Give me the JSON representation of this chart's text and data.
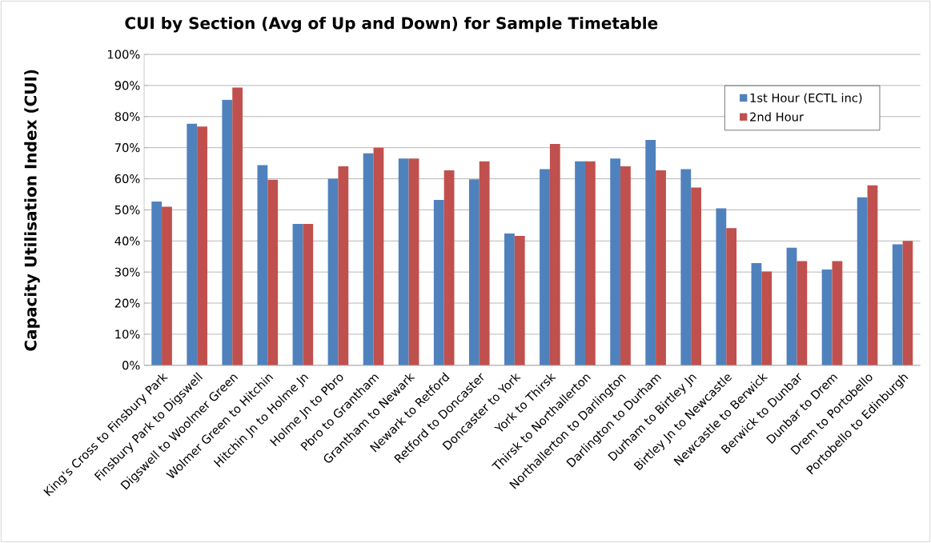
{
  "chart_data": {
    "type": "bar",
    "title": "CUI by Section (Avg of Up and Down) for Sample Timetable",
    "ylabel": "Capacity Utilisation Index (CUI)",
    "categories": [
      "King's Cross to Finsbury Park",
      "Finsbury Park to Digswell",
      "Digswell to Woolmer Green",
      "Wolmer Green to Hitchin",
      "Hitchin Jn to Holme Jn",
      "Holme Jn to Pbro",
      "Pbro to Grantham",
      "Grantham to Newark",
      "Newark to Retford",
      "Retford to Doncaster",
      "Doncaster to York",
      "York to Thirsk",
      "Thirsk to Northallerton",
      "Northallerton to Darlington",
      "Darlington to Durham",
      "Durham to Birtley Jn",
      "Birtley Jn to Newcastle",
      "Newcastle to Berwick",
      "Berwick to Dunbar",
      "Dunbar to Drem",
      "Drem to Portobello",
      "Portobello to Edinburgh"
    ],
    "series": [
      {
        "name": "1st Hour (ECTL inc)",
        "color": "#4f81bd",
        "values": [
          52.7,
          77.7,
          85.4,
          64.4,
          45.5,
          60,
          68.2,
          66.5,
          53.2,
          59.8,
          42.4,
          63.1,
          65.6,
          66.5,
          72.5,
          63.1,
          50.5,
          32.9,
          37.8,
          30.8,
          54,
          38.9
        ]
      },
      {
        "name": "2nd Hour",
        "color": "#c0504d",
        "values": [
          51,
          76.8,
          89.3,
          59.7,
          45.5,
          64,
          70,
          66.5,
          62.7,
          65.6,
          41.6,
          71.2,
          65.6,
          64,
          62.7,
          57.2,
          44.1,
          30.2,
          33.5,
          33.5,
          57.9,
          40
        ]
      }
    ],
    "ylim": [
      0,
      100
    ],
    "yticks": [
      {
        "value": 0,
        "label": "0%"
      },
      {
        "value": 10,
        "label": "10%"
      },
      {
        "value": 20,
        "label": "20%"
      },
      {
        "value": 30,
        "label": "30%"
      },
      {
        "value": 40,
        "label": "40%"
      },
      {
        "value": 50,
        "label": "50%"
      },
      {
        "value": 60,
        "label": "60%"
      },
      {
        "value": 70,
        "label": "70%"
      },
      {
        "value": 80,
        "label": "80%"
      },
      {
        "value": 90,
        "label": "90%"
      },
      {
        "value": 100,
        "label": "100%"
      }
    ],
    "grid": "y",
    "legend": "top right"
  }
}
